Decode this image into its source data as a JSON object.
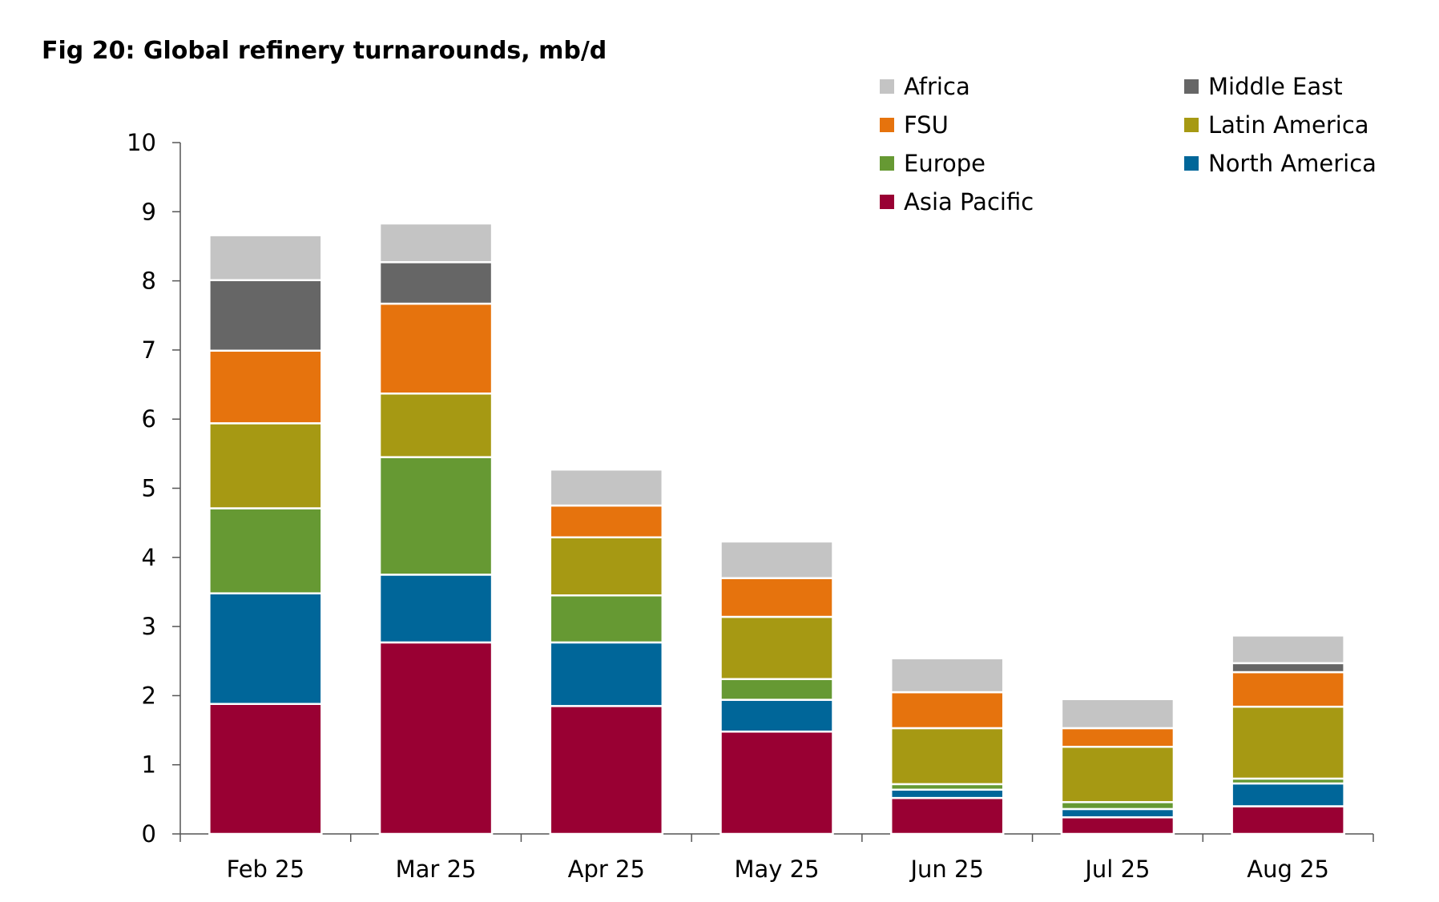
{
  "chart_data": {
    "type": "bar",
    "stacked": true,
    "title": "Fig 20: Global refinery turnarounds, mb/d",
    "xlabel": "",
    "ylabel": "",
    "ylim": [
      0,
      10
    ],
    "yticks": [
      "0",
      "1",
      "2",
      "3",
      "4",
      "5",
      "6",
      "7",
      "8",
      "9",
      "10"
    ],
    "categories": [
      "Feb 25",
      "Mar 25",
      "Apr 25",
      "May 25",
      "Jun 25",
      "Jul 25",
      "Aug 25"
    ],
    "legend_position": "top-right",
    "series": [
      {
        "name": "Asia Pacific",
        "color": "#990033",
        "values": [
          1.88,
          2.77,
          1.85,
          1.48,
          0.52,
          0.24,
          0.4
        ]
      },
      {
        "name": "North America",
        "color": "#006699",
        "values": [
          1.6,
          0.98,
          0.92,
          0.46,
          0.12,
          0.12,
          0.33
        ]
      },
      {
        "name": "Europe",
        "color": "#669933",
        "values": [
          1.23,
          1.7,
          0.68,
          0.3,
          0.08,
          0.1,
          0.07
        ]
      },
      {
        "name": "Latin America",
        "color": "#A69913",
        "values": [
          1.23,
          0.92,
          0.84,
          0.9,
          0.81,
          0.8,
          1.04
        ]
      },
      {
        "name": "FSU",
        "color": "#E6730D",
        "values": [
          1.05,
          1.3,
          0.46,
          0.56,
          0.52,
          0.27,
          0.5
        ]
      },
      {
        "name": "Middle East",
        "color": "#666666",
        "values": [
          1.02,
          0.6,
          0.0,
          0.0,
          0.0,
          0.0,
          0.13
        ]
      },
      {
        "name": "Africa",
        "color": "#C4C4C4",
        "values": [
          0.65,
          0.56,
          0.52,
          0.53,
          0.49,
          0.42,
          0.4
        ]
      }
    ],
    "legend_order": [
      "Africa",
      "Middle East",
      "FSU",
      "Latin America",
      "Europe",
      "North America",
      "Asia Pacific"
    ]
  }
}
